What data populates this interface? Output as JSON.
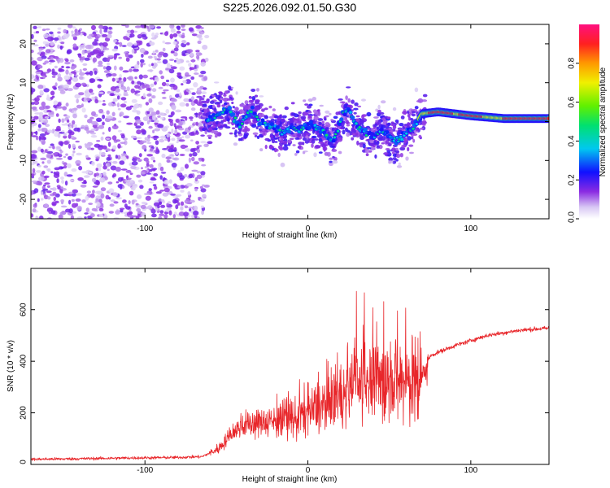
{
  "chart_data": [
    {
      "id": "spectrogram",
      "type": "heatmap",
      "title": "S225.2026.092.01.50.G30",
      "xlabel": "Height of straight line (km)",
      "ylabel": "Frequency (Hz)",
      "xlim": [
        -170,
        148
      ],
      "ylim": [
        -25,
        25
      ],
      "x_ticks": [
        -100,
        0,
        100
      ],
      "y_ticks": [
        -20,
        -10,
        0,
        10,
        20
      ],
      "x_tick_labels": [
        "-100",
        "0",
        "100"
      ],
      "y_tick_labels": [
        "-20",
        "-10",
        "0",
        "10",
        "20"
      ],
      "colorbar": {
        "label": "Normalized spectral amplitude",
        "range": [
          0,
          1
        ],
        "ticks": [
          0.0,
          0.2,
          0.4,
          0.6,
          0.8
        ],
        "tick_labels": [
          "0.0",
          "0.2",
          "0.4",
          "0.6",
          "0.8"
        ]
      },
      "ridge": {
        "x": [
          -62,
          -55,
          -48,
          -42,
          -38,
          -34,
          -30,
          -25,
          -20,
          -15,
          -10,
          -5,
          0,
          5,
          10,
          15,
          18,
          21,
          25,
          30,
          35,
          40,
          45,
          50,
          55,
          60,
          65,
          70,
          80,
          100,
          120,
          148
        ],
        "y": [
          0,
          2,
          3,
          -1,
          1,
          3,
          0,
          -1,
          -2,
          -3,
          -1,
          -2,
          -1,
          -1,
          -3,
          -5,
          -3,
          2,
          3,
          -1,
          -3,
          -4,
          -2,
          -4,
          -5,
          -3,
          -1,
          2,
          2.5,
          1.5,
          0.8,
          0.8
        ]
      }
    },
    {
      "id": "snr",
      "type": "line",
      "xlabel": "Height of straight line (km)",
      "ylabel": "SNR (10 * v/v)",
      "xlim": [
        -170,
        148
      ],
      "ylim": [
        0,
        760
      ],
      "x_ticks": [
        -100,
        0,
        100
      ],
      "y_ticks": [
        0,
        200,
        400,
        600
      ],
      "x_tick_labels": [
        "-100",
        "0",
        "100"
      ],
      "y_tick_labels": [
        "0",
        "200",
        "400",
        "600"
      ],
      "color": "#e8262a",
      "series": [
        {
          "name": "SNR",
          "x": [
            -170,
            -140,
            -110,
            -80,
            -65,
            -55,
            -45,
            -40,
            -30,
            -20,
            -10,
            0,
            10,
            20,
            30,
            40,
            50,
            60,
            70,
            75,
            80,
            90,
            100,
            110,
            120,
            130,
            140,
            148
          ],
          "values": [
            20,
            22,
            25,
            27,
            30,
            60,
            130,
            150,
            160,
            170,
            175,
            200,
            230,
            270,
            300,
            310,
            320,
            320,
            330,
            420,
            435,
            460,
            480,
            500,
            510,
            520,
            525,
            528
          ]
        }
      ]
    }
  ]
}
